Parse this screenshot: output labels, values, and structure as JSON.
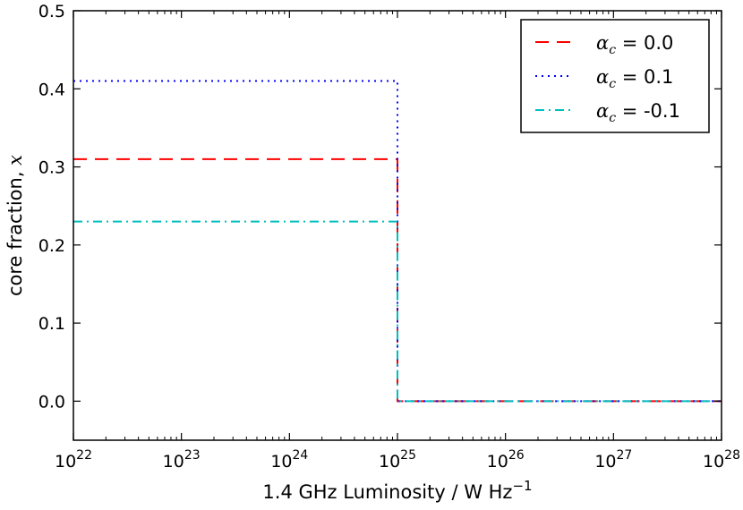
{
  "chart_data": {
    "type": "line",
    "title": "",
    "xlabel": "1.4 GHz Luminosity / W Hz",
    "xlabel_exponent": "−1",
    "ylabel": "core fraction, ",
    "ylabel_var": "x",
    "xscale": "log",
    "xlim_exponents": [
      22,
      28
    ],
    "ylim": [
      -0.05,
      0.5
    ],
    "x_ticks": [
      {
        "base": "10",
        "exp": "22",
        "value": 22
      },
      {
        "base": "10",
        "exp": "23",
        "value": 23
      },
      {
        "base": "10",
        "exp": "24",
        "value": 24
      },
      {
        "base": "10",
        "exp": "25",
        "value": 25
      },
      {
        "base": "10",
        "exp": "26",
        "value": 26
      },
      {
        "base": "10",
        "exp": "27",
        "value": 27
      },
      {
        "base": "10",
        "exp": "28",
        "value": 28
      }
    ],
    "y_ticks": [
      {
        "label": "0.0",
        "value": 0.0
      },
      {
        "label": "0.1",
        "value": 0.1
      },
      {
        "label": "0.2",
        "value": 0.2
      },
      {
        "label": "0.3",
        "value": 0.3
      },
      {
        "label": "0.4",
        "value": 0.4
      },
      {
        "label": "0.5",
        "value": 0.5
      }
    ],
    "series": [
      {
        "name": "α_c = 0.0",
        "legend_symbol": "α",
        "legend_sub": "c",
        "legend_value": " = 0.0",
        "color": "#ff0000",
        "dash": "dashed",
        "x_exponents": [
          22,
          25,
          25,
          28
        ],
        "y": [
          0.31,
          0.31,
          0.0,
          0.0
        ]
      },
      {
        "name": "α_c = 0.1",
        "legend_symbol": "α",
        "legend_sub": "c",
        "legend_value": " = 0.1",
        "color": "#0000ff",
        "dash": "dotted",
        "x_exponents": [
          22,
          25,
          25,
          28
        ],
        "y": [
          0.41,
          0.41,
          0.0,
          0.0
        ]
      },
      {
        "name": "α_c = -0.1",
        "legend_symbol": "α",
        "legend_sub": "c",
        "legend_value": " = -0.1",
        "color": "#00bfbf",
        "dash": "dashdot",
        "x_exponents": [
          22,
          25,
          25,
          28
        ],
        "y": [
          0.23,
          0.23,
          0.0,
          0.0
        ]
      }
    ],
    "legend_position": "top-right",
    "grid": false
  }
}
